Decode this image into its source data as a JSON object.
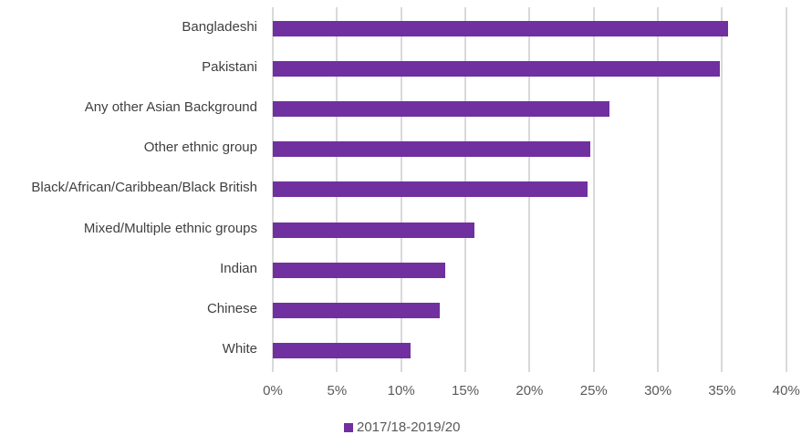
{
  "chart_data": {
    "type": "bar",
    "orientation": "horizontal",
    "title": "",
    "xlabel": "",
    "ylabel": "",
    "categories": [
      "Bangladeshi",
      "Pakistani",
      "Any other Asian Background",
      "Other ethnic group",
      "Black/African/Caribbean/Black British",
      "Mixed/Multiple ethnic groups",
      "Indian",
      "Chinese",
      "White"
    ],
    "series": [
      {
        "name": "2017/18-2019/20",
        "color": "#7030a0",
        "values": [
          35.5,
          34.8,
          26.2,
          24.7,
          24.5,
          15.7,
          13.4,
          13.0,
          10.7
        ]
      }
    ],
    "xlim": [
      0,
      40
    ],
    "xticks": [
      "0%",
      "5%",
      "10%",
      "15%",
      "20%",
      "25%",
      "30%",
      "35%",
      "40%"
    ],
    "grid": "vertical",
    "legend_position": "bottom"
  },
  "legend": {
    "label": "2017/18-2019/20"
  }
}
